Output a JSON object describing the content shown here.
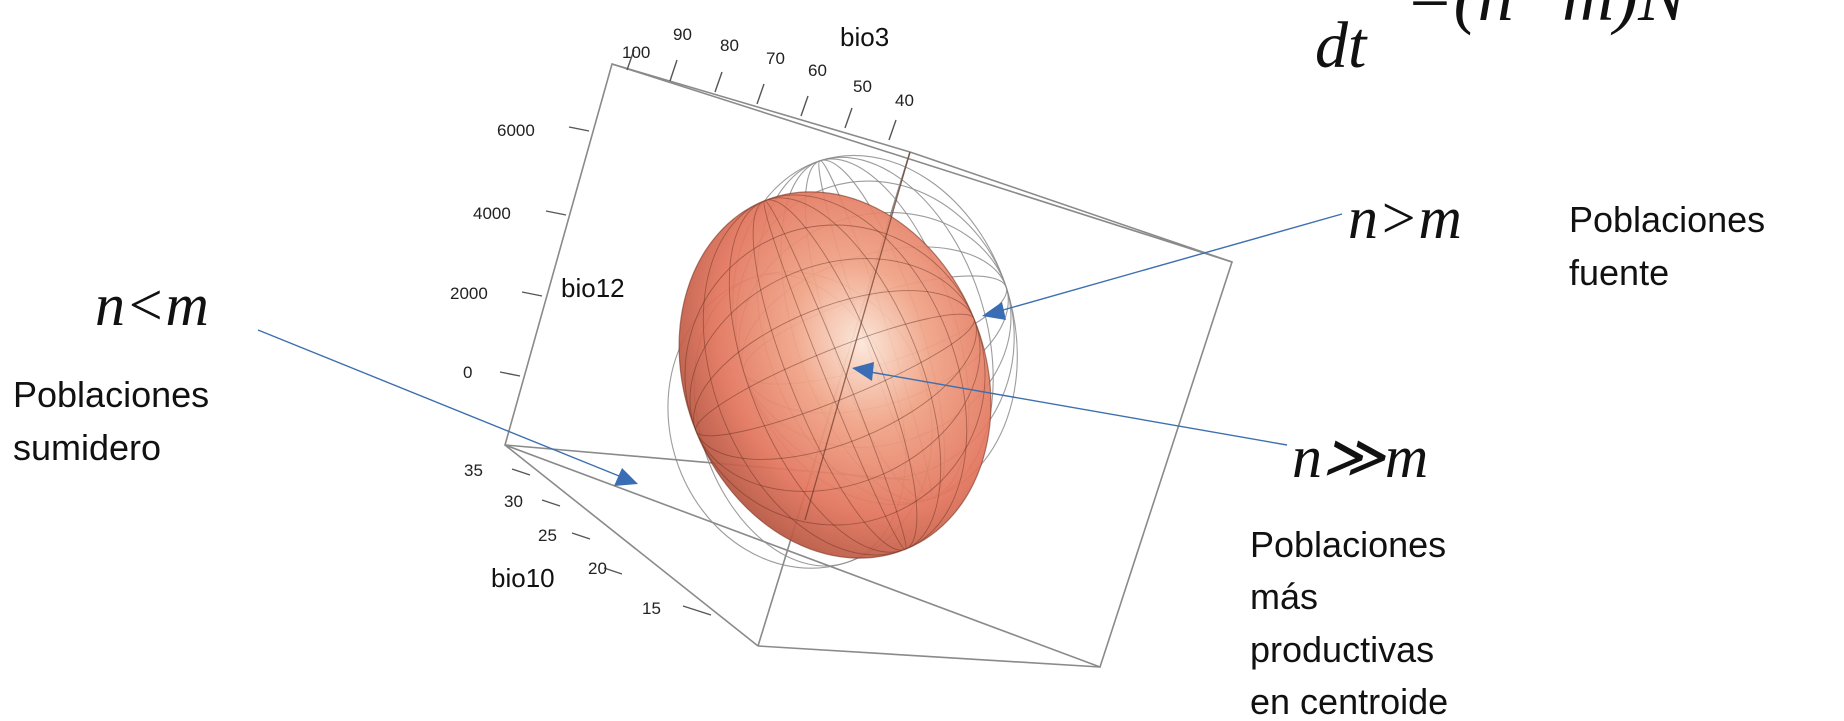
{
  "equation": {
    "dt": "dt",
    "rhs": "=(n−m)N"
  },
  "axes": {
    "bio3": {
      "label": "bio3",
      "ticks": [
        "100",
        "90",
        "80",
        "70",
        "60",
        "50",
        "40"
      ]
    },
    "bio12": {
      "label": "bio12",
      "ticks": [
        "6000",
        "4000",
        "2000",
        "0"
      ]
    },
    "bio10": {
      "label": "bio10",
      "ticks": [
        "35",
        "30",
        "25",
        "20",
        "15"
      ]
    }
  },
  "annotations": {
    "sink": {
      "formula": "n<m",
      "lines": [
        "Poblaciones",
        "sumidero"
      ]
    },
    "source": {
      "formula": "n>m",
      "lines": [
        "Poblaciones",
        "fuente"
      ]
    },
    "centroid": {
      "formula": "n≫m",
      "lines": [
        "Poblaciones",
        "más",
        "productivas",
        "en centroide"
      ]
    }
  },
  "colors": {
    "ellipsoid_core": "#f6cbb4",
    "ellipsoid_mid": "#e8806a",
    "ellipsoid_edge": "#b84f3a",
    "arrow": "#3a6db3",
    "wireframe": "#8b8b8b"
  }
}
